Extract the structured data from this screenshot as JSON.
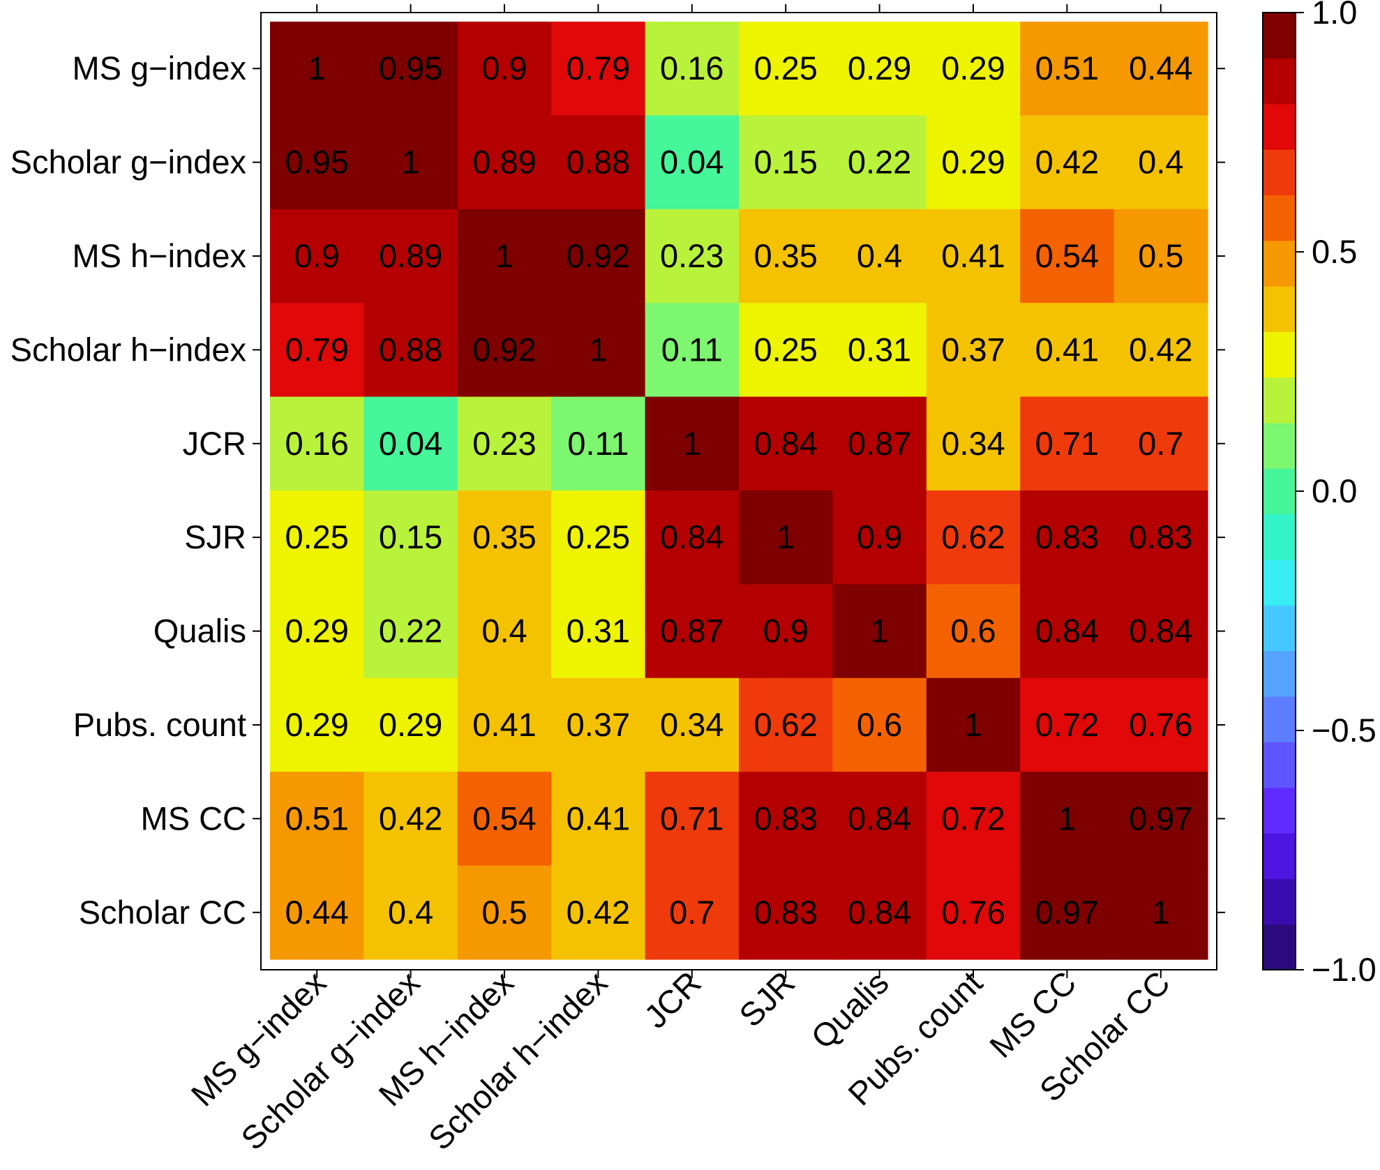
{
  "chart_data": {
    "type": "heatmap",
    "title": "",
    "xlabel": "",
    "ylabel": "",
    "row_labels": [
      "MS g−index",
      "Scholar g−index",
      "MS h−index",
      "Scholar h−index",
      "JCR",
      "SJR",
      "Qualis",
      "Pubs. count",
      "MS CC",
      "Scholar CC"
    ],
    "col_labels": [
      "MS g−index",
      "Scholar g−index",
      "MS h−index",
      "Scholar h−index",
      "JCR",
      "SJR",
      "Qualis",
      "Pubs. count",
      "MS CC",
      "Scholar CC"
    ],
    "values": [
      [
        1,
        0.95,
        0.9,
        0.79,
        0.16,
        0.25,
        0.29,
        0.29,
        0.51,
        0.44
      ],
      [
        0.95,
        1,
        0.89,
        0.88,
        0.04,
        0.15,
        0.22,
        0.29,
        0.42,
        0.4
      ],
      [
        0.9,
        0.89,
        1,
        0.92,
        0.23,
        0.35,
        0.4,
        0.41,
        0.54,
        0.5
      ],
      [
        0.79,
        0.88,
        0.92,
        1,
        0.11,
        0.25,
        0.31,
        0.37,
        0.41,
        0.42
      ],
      [
        0.16,
        0.04,
        0.23,
        0.11,
        1,
        0.84,
        0.87,
        0.34,
        0.71,
        0.7
      ],
      [
        0.25,
        0.15,
        0.35,
        0.25,
        0.84,
        1,
        0.9,
        0.62,
        0.83,
        0.83
      ],
      [
        0.29,
        0.22,
        0.4,
        0.31,
        0.87,
        0.9,
        1,
        0.6,
        0.84,
        0.84
      ],
      [
        0.29,
        0.29,
        0.41,
        0.37,
        0.34,
        0.62,
        0.6,
        1,
        0.72,
        0.76
      ],
      [
        0.51,
        0.42,
        0.54,
        0.41,
        0.71,
        0.83,
        0.84,
        0.72,
        1,
        0.97
      ],
      [
        0.44,
        0.4,
        0.5,
        0.42,
        0.7,
        0.83,
        0.84,
        0.76,
        0.97,
        1
      ]
    ],
    "value_labels": [
      [
        "1",
        "0.95",
        "0.9",
        "0.79",
        "0.16",
        "0.25",
        "0.29",
        "0.29",
        "0.51",
        "0.44"
      ],
      [
        "0.95",
        "1",
        "0.89",
        "0.88",
        "0.04",
        "0.15",
        "0.22",
        "0.29",
        "0.42",
        "0.4"
      ],
      [
        "0.9",
        "0.89",
        "1",
        "0.92",
        "0.23",
        "0.35",
        "0.4",
        "0.41",
        "0.54",
        "0.5"
      ],
      [
        "0.79",
        "0.88",
        "0.92",
        "1",
        "0.11",
        "0.25",
        "0.31",
        "0.37",
        "0.41",
        "0.42"
      ],
      [
        "0.16",
        "0.04",
        "0.23",
        "0.11",
        "1",
        "0.84",
        "0.87",
        "0.34",
        "0.71",
        "0.7"
      ],
      [
        "0.25",
        "0.15",
        "0.35",
        "0.25",
        "0.84",
        "1",
        "0.9",
        "0.62",
        "0.83",
        "0.83"
      ],
      [
        "0.29",
        "0.22",
        "0.4",
        "0.31",
        "0.87",
        "0.9",
        "1",
        "0.6",
        "0.84",
        "0.84"
      ],
      [
        "0.29",
        "0.29",
        "0.41",
        "0.37",
        "0.34",
        "0.62",
        "0.6",
        "1",
        "0.72",
        "0.76"
      ],
      [
        "0.51",
        "0.42",
        "0.54",
        "0.41",
        "0.71",
        "0.83",
        "0.84",
        "0.72",
        "1",
        "0.97"
      ],
      [
        "0.44",
        "0.4",
        "0.5",
        "0.42",
        "0.7",
        "0.83",
        "0.84",
        "0.76",
        "0.97",
        "1"
      ]
    ],
    "colorbar": {
      "range": [
        -1.0,
        1.0
      ],
      "ticks": [
        1.0,
        0.5,
        0.0,
        -0.5,
        -1.0
      ],
      "tick_labels": [
        "1.0",
        "0.5",
        "0.0",
        "−0.5",
        "−1.0"
      ],
      "colors": [
        "#2b0a7e",
        "#3a0cb0",
        "#4e14e0",
        "#5f2bff",
        "#5e55ff",
        "#5d7dff",
        "#56a2ff",
        "#45c8ff",
        "#38eef4",
        "#33f3c8",
        "#45f69a",
        "#7cf76f",
        "#b9f23a",
        "#eef300",
        "#f4c200",
        "#f69800",
        "#f46200",
        "#ef3a0c",
        "#e00808",
        "#b40000",
        "#7e0000"
      ]
    },
    "grid": false,
    "legend": "colorbar-right"
  }
}
